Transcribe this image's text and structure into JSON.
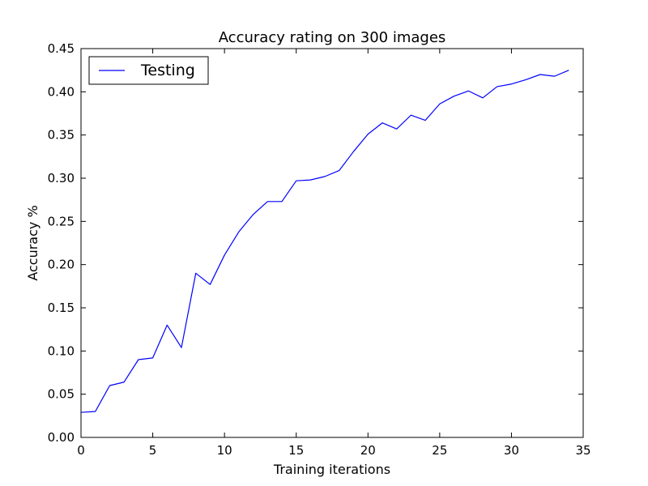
{
  "chart_data": {
    "type": "line",
    "title": "Accuracy rating on 300 images",
    "xlabel": "Training iterations",
    "ylabel": "Accuracy %",
    "xlim": [
      0,
      35
    ],
    "ylim": [
      0,
      0.45
    ],
    "xticks": [
      0,
      5,
      10,
      15,
      20,
      25,
      30,
      35
    ],
    "xtick_labels": [
      "0",
      "5",
      "10",
      "15",
      "20",
      "25",
      "30",
      "35"
    ],
    "yticks": [
      0,
      0.05,
      0.1,
      0.15,
      0.2,
      0.25,
      0.3,
      0.35,
      0.4,
      0.45
    ],
    "ytick_labels": [
      "0.00",
      "0.05",
      "0.10",
      "0.15",
      "0.20",
      "0.25",
      "0.30",
      "0.35",
      "0.40",
      "0.45"
    ],
    "grid": false,
    "legend_position": "top-left",
    "series": [
      {
        "name": "Testing",
        "color": "#0000ff",
        "x": [
          0,
          1,
          2,
          3,
          4,
          5,
          6,
          7,
          8,
          9,
          10,
          11,
          12,
          13,
          14,
          15,
          16,
          17,
          18,
          19,
          20,
          21,
          22,
          23,
          24,
          25,
          26,
          27,
          28,
          29,
          30,
          31,
          32,
          33,
          34
        ],
        "y": [
          0.029,
          0.03,
          0.06,
          0.064,
          0.09,
          0.092,
          0.13,
          0.104,
          0.19,
          0.177,
          0.211,
          0.238,
          0.258,
          0.273,
          0.273,
          0.297,
          0.298,
          0.302,
          0.309,
          0.331,
          0.351,
          0.364,
          0.357,
          0.373,
          0.367,
          0.386,
          0.395,
          0.401,
          0.393,
          0.406,
          0.409,
          0.414,
          0.42,
          0.418,
          0.425
        ]
      }
    ]
  }
}
